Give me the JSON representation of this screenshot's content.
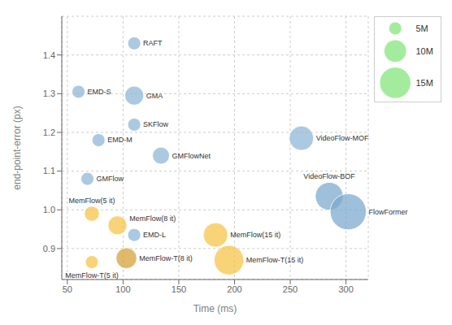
{
  "chart_data": {
    "type": "scatter",
    "xlabel": "Time (ms)",
    "ylabel": "end-point-error (px)",
    "xlim": [
      45,
      320
    ],
    "ylim": [
      0.82,
      1.5
    ],
    "xticks": [
      50,
      100,
      150,
      200,
      250,
      300
    ],
    "yticks": [
      0.9,
      {
        "value": 1.0,
        "label": "1.0"
      },
      1.1,
      1.2,
      1.3,
      1.4
    ],
    "grid": true,
    "labels": [
      "RAFT",
      "EMD-S",
      "GMA",
      "SKFlow",
      "EMD-M",
      "GMFlowNet",
      "VideoFlow-MOF",
      "GMFlow",
      "VideoFlow-BOF",
      "FlowFormer",
      "MemFlow(5 it)",
      "MemFlow(8 it)",
      "EMD-L",
      "MemFlow(15 it)",
      "MemFlow-T(5 it)",
      "MemFlow-T(8 it)",
      "MemFlow-T(15 it)"
    ],
    "x": [
      110,
      60,
      110,
      110,
      78,
      134,
      260,
      68,
      285,
      302,
      72,
      95,
      110,
      183,
      72,
      103,
      195
    ],
    "values": [
      1.43,
      1.305,
      1.295,
      1.22,
      1.18,
      1.14,
      1.185,
      1.08,
      1.035,
      0.995,
      0.99,
      0.96,
      0.935,
      0.935,
      0.865,
      0.875,
      0.87
    ],
    "sizes": [
      5,
      5,
      8,
      5,
      5,
      7,
      11,
      5,
      13,
      18,
      6,
      8,
      5,
      11,
      5,
      9,
      14
    ],
    "colors": [
      "#8ab4d4",
      "#8ab4d4",
      "#8ab4d4",
      "#8ab4d4",
      "#8ab4d4",
      "#8ab4d4",
      "#8ab4d4",
      "#8ab4d4",
      "#7aa8cc",
      "#7aa8cc",
      "#f5c242",
      "#f5c242",
      "#8ab4d4",
      "#f5c242",
      "#f5c242",
      "#d4a030",
      "#f5c242"
    ],
    "size_legend": {
      "values": [
        5,
        10,
        15
      ],
      "labels": [
        "5M",
        "10M",
        "15M"
      ],
      "color": "#90e888"
    }
  }
}
